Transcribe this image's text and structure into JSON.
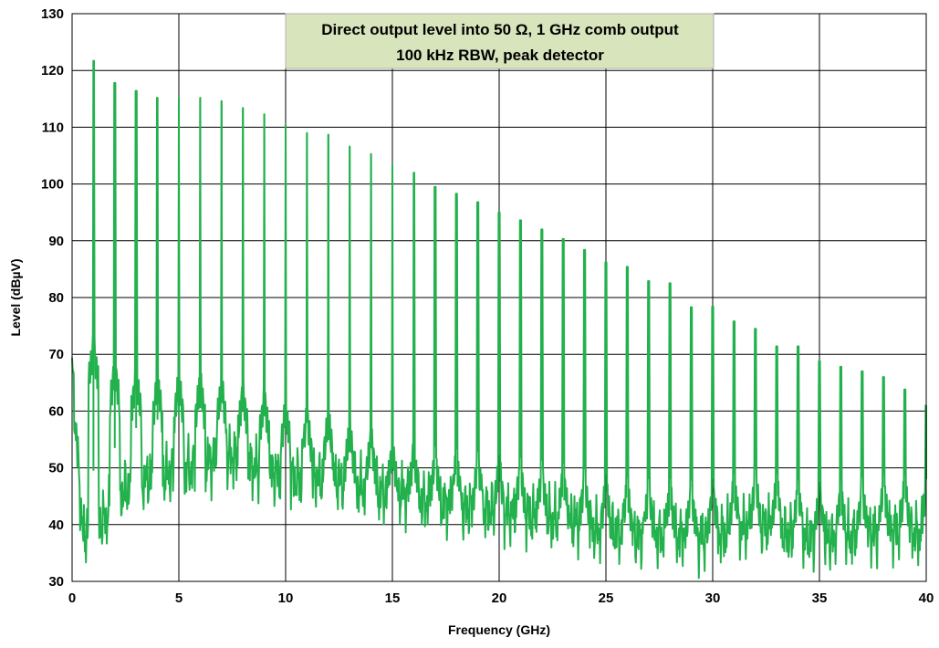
{
  "chart_data": {
    "type": "line",
    "title_lines": [
      "Direct output level into 50 Ω, 1 GHz comb output",
      "100 kHz RBW, peak detector"
    ],
    "xlabel": "Frequency (GHz)",
    "ylabel": "Level (dBµV)",
    "xlim": [
      0,
      40
    ],
    "ylim": [
      30,
      130
    ],
    "x_ticks": [
      0,
      5,
      10,
      15,
      20,
      25,
      30,
      35,
      40
    ],
    "y_ticks": [
      30,
      40,
      50,
      60,
      70,
      80,
      90,
      100,
      110,
      120,
      130
    ],
    "grid": true,
    "series_color": "#22b14c",
    "title_box_color": "#d8e4bc",
    "comb_peaks": {
      "x": [
        1,
        2,
        3,
        4,
        5,
        6,
        7,
        8,
        9,
        10,
        11,
        12,
        13,
        14,
        15,
        16,
        17,
        18,
        19,
        20,
        21,
        22,
        23,
        24,
        25,
        26,
        27,
        28,
        29,
        30,
        31,
        32,
        33,
        34,
        35,
        36,
        37,
        38,
        39,
        40
      ],
      "y": [
        121.7,
        117.8,
        116.4,
        115.2,
        115.2,
        115.2,
        114.6,
        113.4,
        112.3,
        110.5,
        109.0,
        108.7,
        106.6,
        105.3,
        103.5,
        102.0,
        99.5,
        98.3,
        96.8,
        95.0,
        93.6,
        92.0,
        90.3,
        88.4,
        86.2,
        85.4,
        82.9,
        82.5,
        78.3,
        78.4,
        75.8,
        74.5,
        71.4,
        71.4,
        68.8,
        67.8,
        67.0,
        66.0,
        63.8,
        61.0
      ]
    },
    "noise_floor": {
      "x": [
        0,
        0.5,
        1.5,
        2.5,
        3.5,
        4.5,
        5.5,
        6.5,
        7.5,
        8.5,
        9.5,
        10.5,
        11.5,
        12.5,
        13.5,
        14.5,
        15.5,
        16.5,
        17.5,
        18.5,
        19.5,
        20.5,
        21.5,
        22.5,
        23.5,
        24.5,
        25.5,
        26.5,
        27.5,
        28.5,
        29.5,
        30.5,
        31.5,
        32.5,
        33.5,
        34.5,
        35.5,
        36.5,
        37.5,
        38.5,
        39.5,
        40
      ],
      "y": [
        67.0,
        38.0,
        41.0,
        46.0,
        48.0,
        49.0,
        50.0,
        51.0,
        52.0,
        50.0,
        49.0,
        48.0,
        48.0,
        47.5,
        46.5,
        45.5,
        45.5,
        44.0,
        43.5,
        43.0,
        42.5,
        42.0,
        41.5,
        41.0,
        40.5,
        39.0,
        38.5,
        38.0,
        38.0,
        38.0,
        37.5,
        38.5,
        39.5,
        40.0,
        38.0,
        37.5,
        37.5,
        38.0,
        38.5,
        39.0,
        38.5,
        38.0
      ]
    }
  }
}
